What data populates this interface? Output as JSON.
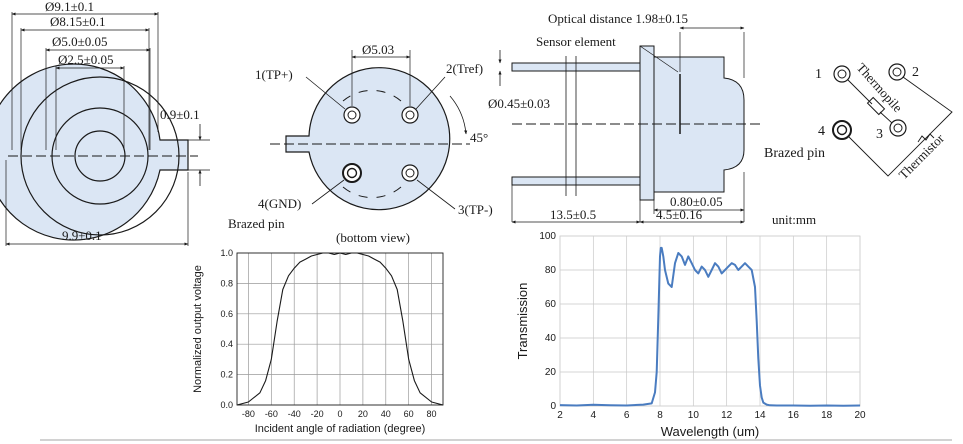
{
  "top_view": {
    "dims": {
      "d91": "Ø9.1±0.1",
      "d815": "Ø8.15±0.1",
      "d50": "Ø5.0±0.05",
      "d25": "Ø2.5±0.05",
      "tab": "0.9±0.1",
      "width": "9.9±0.1"
    }
  },
  "bottom_view": {
    "pin_spacing": "Ø5.03",
    "angle": "45°",
    "pin1": "1(TP+)",
    "pin2": "2(Tref)",
    "pin3": "3(TP-)",
    "pin4": "4(GND)",
    "brazed": "Brazed pin",
    "caption": "(bottom view)"
  },
  "side_view": {
    "optical": "Optical distance 1.98±0.15",
    "sensor": "Sensor element",
    "pin_dia": "Ø0.45±0.03",
    "flange": "0.80±0.05",
    "lead_len": "13.5±0.5",
    "body_len": "4.5±0.16",
    "unit": "unit:mm"
  },
  "schematic": {
    "p1": "1",
    "p2": "2",
    "p3": "3",
    "p4": "4",
    "thermopile": "Thermopile",
    "thermistor": "Thermistor",
    "brazed": "Brazed pin"
  },
  "colors": {
    "fill": "#dbe6f4",
    "line": "#1a1a1a",
    "curve_blue": "#4a7cc0",
    "grid": "#c8c8c8"
  },
  "chart_data": [
    {
      "type": "line",
      "title": "",
      "xlabel": "Incident angle of radiation (degree)",
      "ylabel": "Normalized output voltage",
      "xlim": [
        -90,
        90
      ],
      "ylim": [
        0,
        1.0
      ],
      "xticks": [
        "-80",
        "-60",
        "-40",
        "-20",
        "0",
        "20",
        "40",
        "60",
        "80"
      ],
      "yticks": [
        "0.0",
        "0.2",
        "0.4",
        "0.6",
        "0.8",
        "1.0"
      ],
      "grid": true,
      "series": [
        {
          "x": [
            -90,
            -80,
            -70,
            -65,
            -60,
            -55,
            -50,
            -45,
            -40,
            -35,
            -30,
            -25,
            -20,
            -15,
            -10,
            -5,
            0,
            5,
            10,
            15,
            20,
            25,
            30,
            35,
            40,
            45,
            50,
            55,
            60,
            65,
            70,
            80,
            90
          ],
          "y": [
            0,
            0.02,
            0.08,
            0.16,
            0.3,
            0.55,
            0.76,
            0.85,
            0.9,
            0.94,
            0.96,
            0.98,
            0.99,
            1.0,
            1.0,
            0.99,
            1.0,
            0.99,
            1.0,
            1.0,
            0.99,
            0.98,
            0.96,
            0.94,
            0.9,
            0.85,
            0.76,
            0.55,
            0.3,
            0.16,
            0.08,
            0.02,
            0
          ]
        }
      ]
    },
    {
      "type": "line",
      "title": "",
      "xlabel": "Wavelength (um)",
      "ylabel": "Transmission",
      "xlim": [
        2,
        20
      ],
      "ylim": [
        0,
        100
      ],
      "xticks": [
        "2",
        "4",
        "6",
        "8",
        "10",
        "12",
        "14",
        "16",
        "18",
        "20"
      ],
      "yticks": [
        "0",
        "20",
        "40",
        "60",
        "80",
        "100"
      ],
      "grid": true,
      "series": [
        {
          "x": [
            2,
            3,
            4,
            5,
            6,
            7,
            7.5,
            7.7,
            7.8,
            7.9,
            8.0,
            8.05,
            8.1,
            8.2,
            8.3,
            8.5,
            8.7,
            8.9,
            9.1,
            9.3,
            9.5,
            9.7,
            9.9,
            10.1,
            10.3,
            10.5,
            10.7,
            10.9,
            11.1,
            11.3,
            11.5,
            11.7,
            11.9,
            12.1,
            12.3,
            12.5,
            12.7,
            12.9,
            13.1,
            13.3,
            13.5,
            13.7,
            13.8,
            13.9,
            14.0,
            14.1,
            14.2,
            14.4,
            14.6,
            15,
            16,
            17,
            18,
            19,
            20
          ],
          "y": [
            0.5,
            0.3,
            0.7,
            0.4,
            0.3,
            0.8,
            1.5,
            8,
            20,
            52,
            88,
            93,
            93,
            88,
            80,
            72,
            70,
            84,
            90,
            88,
            83,
            88,
            84,
            80,
            78,
            82,
            80,
            76,
            80,
            84,
            82,
            78,
            80,
            82,
            84,
            83,
            80,
            82,
            84,
            82,
            80,
            70,
            50,
            28,
            12,
            5,
            2,
            0.8,
            0.4,
            0.3,
            0.3,
            0.2,
            0.3,
            0.2,
            0.3
          ]
        }
      ]
    }
  ]
}
